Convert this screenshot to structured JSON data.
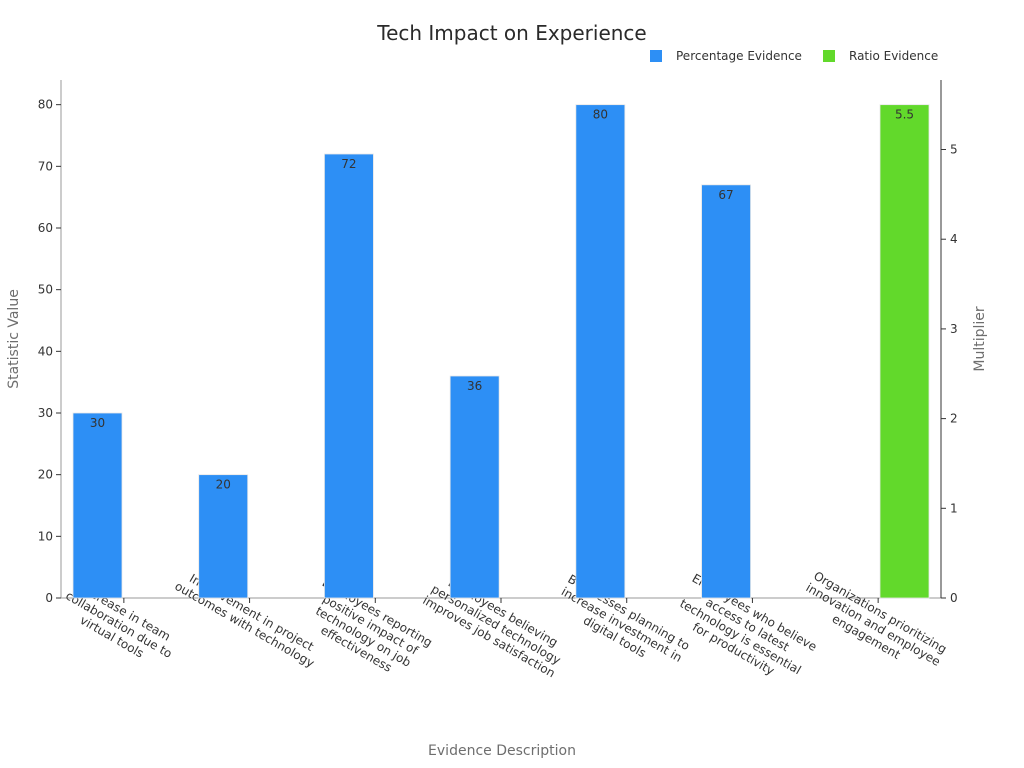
{
  "chart_data": {
    "type": "bar",
    "title": "Tech Impact on Experience",
    "xlabel": "Evidence Description",
    "ylabel": "Statistic Value",
    "y2label": "Multiplier",
    "ylim": [
      0,
      84
    ],
    "y2lim": [
      0,
      5.775
    ],
    "yticks": [
      0,
      10,
      20,
      30,
      40,
      50,
      60,
      70,
      80
    ],
    "y2ticks": [
      0,
      1,
      2,
      3,
      4,
      5
    ],
    "legend_position": "top-right",
    "grid": false,
    "categories": [
      [
        "Increase in team",
        "collaboration due to",
        "virtual tools"
      ],
      [
        "Improvement in project",
        "outcomes with technology"
      ],
      [
        "Employees reporting",
        "positive impact of",
        "technology on job",
        "effectiveness"
      ],
      [
        "Employees believing",
        "personalized technology",
        "improves job satisfaction"
      ],
      [
        "Businesses planning to",
        "increase investment in",
        "digital tools"
      ],
      [
        "Employees who believe",
        "access to latest",
        "technology is essential",
        "for productivity"
      ],
      [
        "Organizations prioritizing",
        "innovation and employee",
        "engagement"
      ]
    ],
    "series": [
      {
        "name": "Percentage Evidence",
        "axis": "left",
        "color": "#2d8ff5",
        "values": [
          30,
          20,
          72,
          36,
          80,
          67,
          null
        ]
      },
      {
        "name": "Ratio Evidence",
        "axis": "right",
        "color": "#62d92b",
        "values": [
          null,
          null,
          null,
          null,
          null,
          null,
          5.5
        ]
      }
    ]
  }
}
